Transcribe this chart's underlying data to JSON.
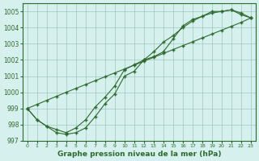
{
  "x": [
    0,
    1,
    2,
    3,
    4,
    5,
    6,
    7,
    8,
    9,
    10,
    11,
    12,
    13,
    14,
    15,
    16,
    17,
    18,
    19,
    20,
    21,
    22,
    23
  ],
  "line1": [
    999.0,
    998.3,
    997.9,
    997.5,
    997.4,
    997.5,
    997.8,
    998.5,
    999.3,
    999.9,
    1001.0,
    1001.3,
    1002.0,
    1002.2,
    1002.5,
    1003.3,
    1004.1,
    1004.5,
    1004.7,
    1005.0,
    1005.0,
    1005.1,
    1004.8,
    1004.6
  ],
  "line2": [
    999.0,
    998.3,
    997.9,
    997.7,
    997.5,
    997.8,
    998.3,
    999.1,
    999.7,
    1000.4,
    1001.4,
    1001.7,
    1002.0,
    1002.5,
    1003.1,
    1003.5,
    1004.0,
    1004.4,
    1004.7,
    1004.9,
    1005.0,
    1005.1,
    1004.9,
    1004.6
  ],
  "line3": [
    999.0,
    999.25,
    999.5,
    999.75,
    1000.0,
    1000.24,
    1000.48,
    1000.72,
    1000.96,
    1001.2,
    1001.44,
    1001.68,
    1001.92,
    1002.16,
    1002.4,
    1002.64,
    1002.88,
    1003.12,
    1003.36,
    1003.6,
    1003.84,
    1004.08,
    1004.32,
    1004.6
  ],
  "background_color": "#d6f0ee",
  "line_color": "#2d6a2d",
  "grid_color": "#a0c8c0",
  "xlabel": "Graphe pression niveau de la mer (hPa)",
  "ylim": [
    997,
    1005.5
  ],
  "xlim": [
    -0.5,
    23.5
  ],
  "yticks": [
    997,
    998,
    999,
    1000,
    1001,
    1002,
    1003,
    1004,
    1005
  ],
  "xticks": [
    0,
    1,
    2,
    3,
    4,
    5,
    6,
    7,
    8,
    9,
    10,
    11,
    12,
    13,
    14,
    15,
    16,
    17,
    18,
    19,
    20,
    21,
    22,
    23
  ]
}
